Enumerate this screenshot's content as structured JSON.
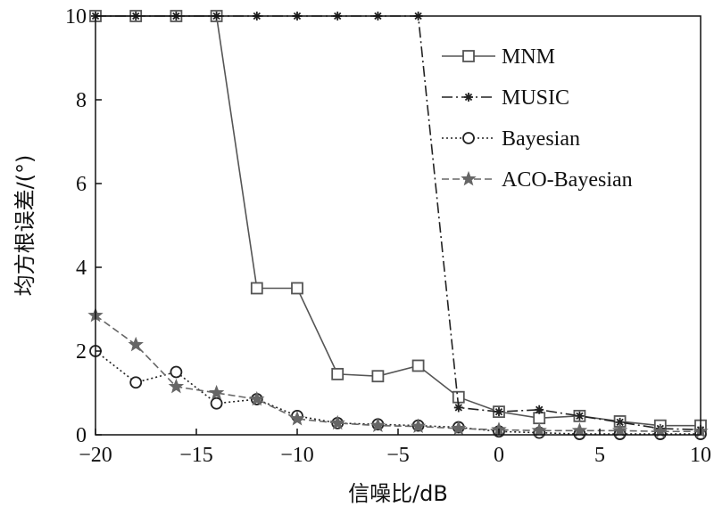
{
  "chart_data": {
    "type": "line",
    "xlabel": "信噪比/dB",
    "ylabel": "均方根误差/(°)",
    "xlim": [
      -20,
      10
    ],
    "ylim": [
      0,
      10
    ],
    "xticks": [
      -20,
      -15,
      -10,
      -5,
      0,
      5,
      10
    ],
    "yticks": [
      0,
      2,
      4,
      6,
      8,
      10
    ],
    "xtick_labels": [
      "−20",
      "−15",
      "−10",
      "−5",
      "0",
      "5",
      "10"
    ],
    "ytick_labels": [
      "0",
      "2",
      "4",
      "6",
      "8",
      "10"
    ],
    "grid": false,
    "legend_position": "top-right",
    "x": [
      -20,
      -18,
      -16,
      -14,
      -12,
      -10,
      -8,
      -6,
      -4,
      -2,
      0,
      2,
      4,
      6,
      8,
      10
    ],
    "series": [
      {
        "name": "MNM",
        "marker": "square",
        "line": "solid",
        "color": "#555555",
        "values": [
          10,
          10,
          10,
          10,
          3.5,
          3.5,
          1.45,
          1.4,
          1.65,
          0.9,
          0.55,
          0.4,
          0.45,
          0.32,
          0.22,
          0.22
        ]
      },
      {
        "name": "MUSIC",
        "marker": "asterisk",
        "line": "dashdot",
        "color": "#222222",
        "values": [
          10,
          10,
          10,
          10,
          10,
          10,
          10,
          10,
          10,
          0.65,
          0.55,
          0.6,
          0.45,
          0.3,
          0.15,
          0.12
        ]
      },
      {
        "name": "Bayesian",
        "marker": "circle",
        "line": "dotted",
        "color": "#222222",
        "values": [
          2.0,
          1.25,
          1.5,
          0.75,
          0.85,
          0.45,
          0.28,
          0.25,
          0.22,
          0.18,
          0.08,
          0.05,
          0.02,
          0.02,
          0.02,
          0.02
        ]
      },
      {
        "name": "ACO-Bayesian",
        "marker": "star",
        "line": "dashed",
        "color": "#666666",
        "values": [
          2.85,
          2.15,
          1.15,
          1.0,
          0.85,
          0.38,
          0.28,
          0.22,
          0.2,
          0.15,
          0.12,
          0.1,
          0.1,
          0.1,
          0.08,
          0.08
        ]
      }
    ]
  }
}
